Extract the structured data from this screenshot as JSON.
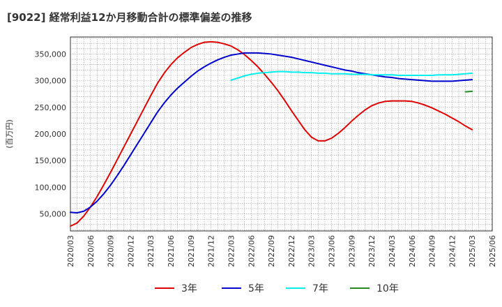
{
  "chart_data": {
    "type": "line",
    "title": "[9022]  経常利益12か月移動合計の標準偏差の推移",
    "ylabel": "(百万円)",
    "xlabel": "",
    "ylim": [
      18000,
      382000
    ],
    "y_ticks": [
      50000,
      100000,
      150000,
      200000,
      250000,
      300000,
      350000
    ],
    "y_tick_labels": [
      "50,000",
      "100,000",
      "150,000",
      "200,000",
      "250,000",
      "300,000",
      "350,000"
    ],
    "x_tick_labels": [
      "2020/03",
      "2020/06",
      "2020/09",
      "2020/12",
      "2021/03",
      "2021/06",
      "2021/09",
      "2021/12",
      "2022/03",
      "2022/06",
      "2022/09",
      "2022/12",
      "2023/03",
      "2023/06",
      "2023/09",
      "2023/12",
      "2024/03",
      "2024/06",
      "2024/09",
      "2024/12",
      "2025/03",
      "2025/06"
    ],
    "grid": true,
    "legend_position": "bottom",
    "series": [
      {
        "name": "3年",
        "color": "#dd0000",
        "points": [
          [
            "2020/03",
            27000
          ],
          [
            "2020/04",
            33000
          ],
          [
            "2020/05",
            46000
          ],
          [
            "2020/06",
            63000
          ],
          [
            "2020/07",
            83000
          ],
          [
            "2020/08",
            105000
          ],
          [
            "2020/09",
            128000
          ],
          [
            "2020/10",
            152000
          ],
          [
            "2020/11",
            176000
          ],
          [
            "2020/12",
            200000
          ],
          [
            "2021/01",
            224000
          ],
          [
            "2021/02",
            248000
          ],
          [
            "2021/03",
            272000
          ],
          [
            "2021/04",
            295000
          ],
          [
            "2021/05",
            314000
          ],
          [
            "2021/06",
            330000
          ],
          [
            "2021/07",
            343000
          ],
          [
            "2021/08",
            353000
          ],
          [
            "2021/09",
            362000
          ],
          [
            "2021/10",
            368000
          ],
          [
            "2021/11",
            372000
          ],
          [
            "2021/12",
            373000
          ],
          [
            "2022/01",
            372000
          ],
          [
            "2022/02",
            369000
          ],
          [
            "2022/03",
            365000
          ],
          [
            "2022/04",
            358000
          ],
          [
            "2022/05",
            349000
          ],
          [
            "2022/06",
            338000
          ],
          [
            "2022/07",
            326000
          ],
          [
            "2022/08",
            312000
          ],
          [
            "2022/09",
            297000
          ],
          [
            "2022/10",
            281000
          ],
          [
            "2022/11",
            263000
          ],
          [
            "2022/12",
            244000
          ],
          [
            "2023/01",
            226000
          ],
          [
            "2023/02",
            208000
          ],
          [
            "2023/03",
            194000
          ],
          [
            "2023/04",
            187000
          ],
          [
            "2023/05",
            187000
          ],
          [
            "2023/06",
            192000
          ],
          [
            "2023/07",
            201000
          ],
          [
            "2023/08",
            212000
          ],
          [
            "2023/09",
            224000
          ],
          [
            "2023/10",
            235000
          ],
          [
            "2023/11",
            245000
          ],
          [
            "2023/12",
            253000
          ],
          [
            "2024/01",
            258000
          ],
          [
            "2024/02",
            261000
          ],
          [
            "2024/03",
            262000
          ],
          [
            "2024/04",
            262000
          ],
          [
            "2024/05",
            262000
          ],
          [
            "2024/06",
            261000
          ],
          [
            "2024/07",
            258000
          ],
          [
            "2024/08",
            254000
          ],
          [
            "2024/09",
            249000
          ],
          [
            "2024/10",
            243000
          ],
          [
            "2024/11",
            237000
          ],
          [
            "2024/12",
            230000
          ],
          [
            "2025/01",
            223000
          ],
          [
            "2025/02",
            215000
          ],
          [
            "2025/03",
            208000
          ]
        ]
      },
      {
        "name": "5年",
        "color": "#0000cc",
        "points": [
          [
            "2020/03",
            53000
          ],
          [
            "2020/04",
            52000
          ],
          [
            "2020/05",
            55000
          ],
          [
            "2020/06",
            63000
          ],
          [
            "2020/07",
            74000
          ],
          [
            "2020/08",
            88000
          ],
          [
            "2020/09",
            104000
          ],
          [
            "2020/10",
            122000
          ],
          [
            "2020/11",
            141000
          ],
          [
            "2020/12",
            161000
          ],
          [
            "2021/01",
            181000
          ],
          [
            "2021/02",
            201000
          ],
          [
            "2021/03",
            221000
          ],
          [
            "2021/04",
            241000
          ],
          [
            "2021/05",
            258000
          ],
          [
            "2021/06",
            273000
          ],
          [
            "2021/07",
            286000
          ],
          [
            "2021/08",
            297000
          ],
          [
            "2021/09",
            308000
          ],
          [
            "2021/10",
            318000
          ],
          [
            "2021/11",
            326000
          ],
          [
            "2021/12",
            333000
          ],
          [
            "2022/01",
            339000
          ],
          [
            "2022/02",
            344000
          ],
          [
            "2022/03",
            348000
          ],
          [
            "2022/04",
            350000
          ],
          [
            "2022/05",
            352000
          ],
          [
            "2022/06",
            352000
          ],
          [
            "2022/07",
            352000
          ],
          [
            "2022/08",
            351000
          ],
          [
            "2022/09",
            350000
          ],
          [
            "2022/10",
            348000
          ],
          [
            "2022/11",
            346000
          ],
          [
            "2022/12",
            344000
          ],
          [
            "2023/01",
            341000
          ],
          [
            "2023/02",
            338000
          ],
          [
            "2023/03",
            335000
          ],
          [
            "2023/04",
            332000
          ],
          [
            "2023/05",
            329000
          ],
          [
            "2023/06",
            326000
          ],
          [
            "2023/07",
            323000
          ],
          [
            "2023/08",
            320000
          ],
          [
            "2023/09",
            318000
          ],
          [
            "2023/10",
            315000
          ],
          [
            "2023/11",
            313000
          ],
          [
            "2023/12",
            311000
          ],
          [
            "2024/01",
            309000
          ],
          [
            "2024/02",
            307000
          ],
          [
            "2024/03",
            306000
          ],
          [
            "2024/04",
            304000
          ],
          [
            "2024/05",
            303000
          ],
          [
            "2024/06",
            302000
          ],
          [
            "2024/07",
            301000
          ],
          [
            "2024/08",
            300000
          ],
          [
            "2024/09",
            299000
          ],
          [
            "2024/10",
            299000
          ],
          [
            "2024/11",
            299000
          ],
          [
            "2024/12",
            299000
          ],
          [
            "2025/01",
            300000
          ],
          [
            "2025/02",
            301000
          ],
          [
            "2025/03",
            302000
          ]
        ]
      },
      {
        "name": "7年",
        "color": "#00eeee",
        "points": [
          [
            "2022/03",
            301000
          ],
          [
            "2022/04",
            305000
          ],
          [
            "2022/05",
            309000
          ],
          [
            "2022/06",
            312000
          ],
          [
            "2022/07",
            314000
          ],
          [
            "2022/08",
            315000
          ],
          [
            "2022/09",
            316000
          ],
          [
            "2022/10",
            317000
          ],
          [
            "2022/11",
            317000
          ],
          [
            "2022/12",
            316000
          ],
          [
            "2023/01",
            316000
          ],
          [
            "2023/02",
            315000
          ],
          [
            "2023/03",
            315000
          ],
          [
            "2023/04",
            314000
          ],
          [
            "2023/05",
            314000
          ],
          [
            "2023/06",
            313000
          ],
          [
            "2023/07",
            313000
          ],
          [
            "2023/08",
            313000
          ],
          [
            "2023/09",
            312000
          ],
          [
            "2023/10",
            312000
          ],
          [
            "2023/11",
            312000
          ],
          [
            "2023/12",
            311000
          ],
          [
            "2024/01",
            311000
          ],
          [
            "2024/02",
            311000
          ],
          [
            "2024/03",
            311000
          ],
          [
            "2024/04",
            310000
          ],
          [
            "2024/05",
            310000
          ],
          [
            "2024/06",
            310000
          ],
          [
            "2024/07",
            310000
          ],
          [
            "2024/08",
            310000
          ],
          [
            "2024/09",
            310000
          ],
          [
            "2024/10",
            311000
          ],
          [
            "2024/11",
            311000
          ],
          [
            "2024/12",
            311000
          ],
          [
            "2025/01",
            312000
          ],
          [
            "2025/02",
            313000
          ],
          [
            "2025/03",
            314000
          ]
        ]
      },
      {
        "name": "10年",
        "color": "#228822",
        "points": [
          [
            "2025/02",
            279000
          ],
          [
            "2025/03",
            280000
          ]
        ]
      }
    ]
  }
}
